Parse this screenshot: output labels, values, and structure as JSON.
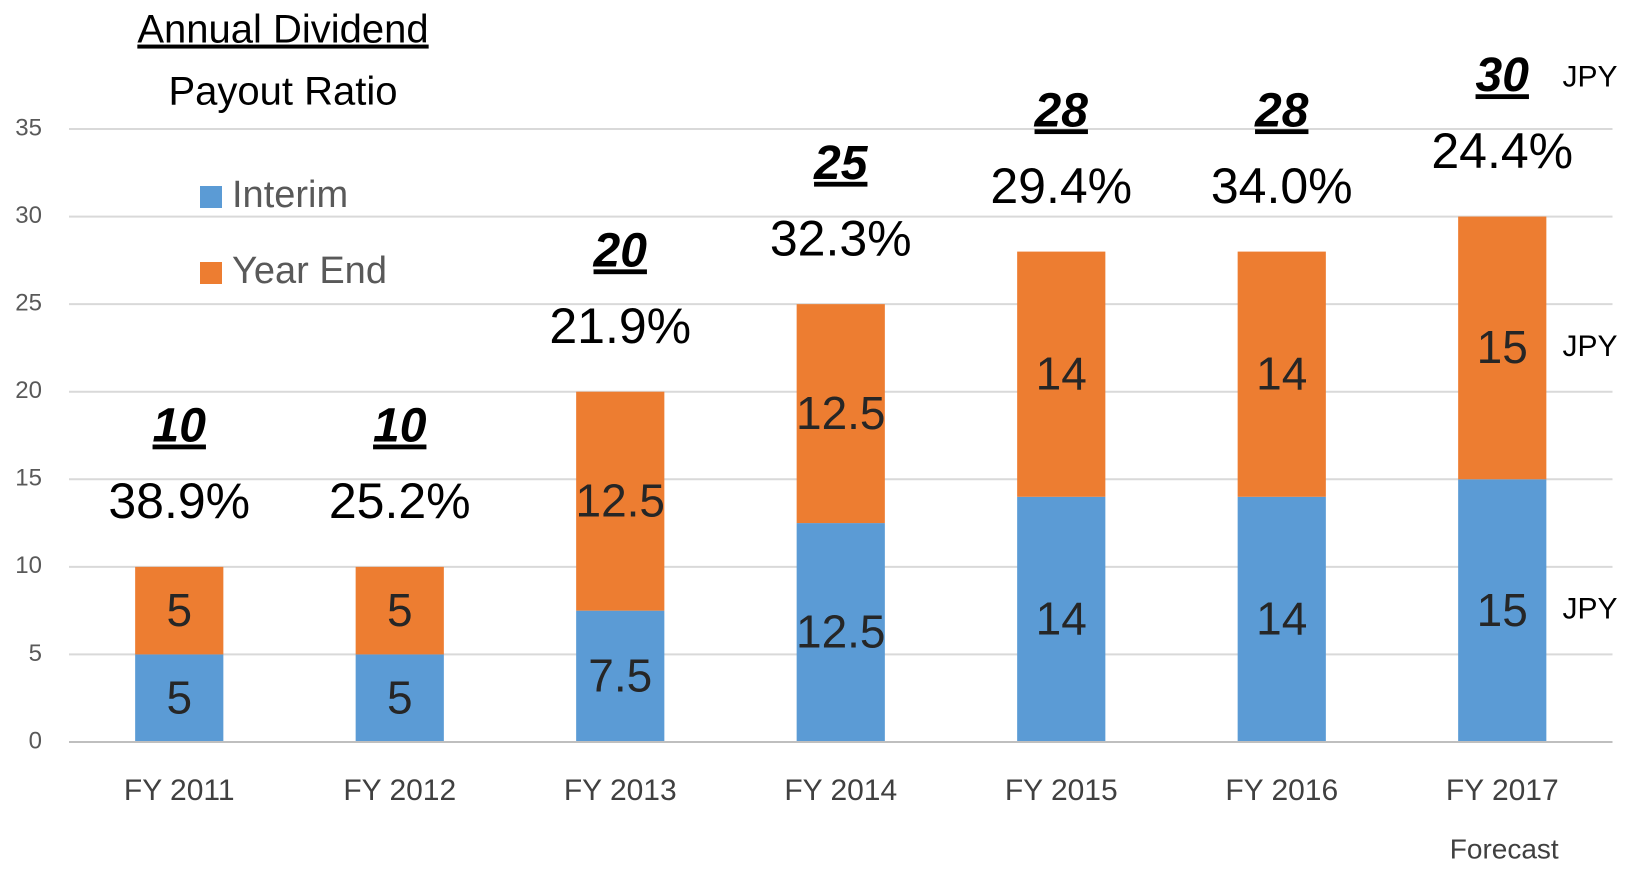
{
  "chart_data": {
    "type": "stacked_bar",
    "title": "Annual Dividend",
    "subtitle": "Payout Ratio",
    "categories": [
      "FY 2011",
      "FY 2012",
      "FY 2013",
      "FY 2014",
      "FY 2015",
      "FY 2016",
      "FY 2017"
    ],
    "category_note": "Forecast",
    "series": [
      {
        "name": "Interim",
        "color": "#5b9bd5",
        "values": [
          5,
          5,
          7.5,
          12.5,
          14,
          14,
          15
        ]
      },
      {
        "name": "Year End",
        "color": "#ed7d31",
        "values": [
          5,
          5,
          12.5,
          12.5,
          14,
          14,
          15
        ]
      }
    ],
    "annual_dividend": [
      10,
      10,
      20,
      25,
      28,
      28,
      30
    ],
    "payout_ratio": {
      "values": [
        38.9,
        25.2,
        21.9,
        32.3,
        29.4,
        34.0,
        24.4
      ],
      "value_labels": [
        "38.9%",
        "25.2%",
        "21.9%",
        "32.3%",
        "29.4%",
        "34.0%",
        "24.4%"
      ]
    },
    "unit_labels": [
      "JPY",
      "JPY",
      "JPY"
    ],
    "ylim": [
      0,
      35
    ],
    "yticks": [
      0,
      5,
      10,
      15,
      20,
      25,
      30,
      35
    ],
    "grid": true,
    "legend": "upper left"
  }
}
